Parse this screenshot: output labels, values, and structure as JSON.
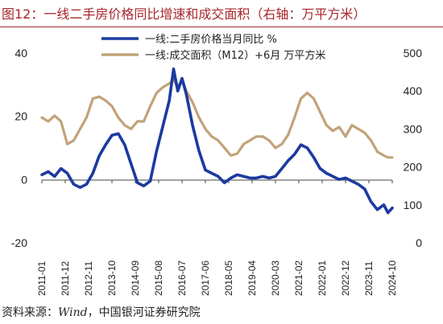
{
  "figure_title": "图12：一线二手房价格同比增速和成交面积（右轴：万平方米）",
  "source": {
    "label": "资料来源：",
    "provider": "Wind",
    "sep": "，",
    "org": "中国银河证券研究院"
  },
  "chart_data": {
    "type": "line",
    "title": "",
    "xlabel": "",
    "ylabel": "",
    "y2label": "",
    "ylim": [
      -20,
      40
    ],
    "y_ticks": [
      40,
      20,
      0,
      -20
    ],
    "y2lim": [
      0,
      500
    ],
    "y2_ticks": [
      500,
      400,
      300,
      200,
      100,
      0
    ],
    "grid": false,
    "legend": "top-left",
    "x_range": [
      "2011-01",
      "2024-10"
    ],
    "x_tick_labels": [
      "2011-01",
      "2011-12",
      "2012-11",
      "2013-10",
      "2014-09",
      "2015-08",
      "2016-07",
      "2017-06",
      "2018-05",
      "2019-04",
      "2020-03",
      "2021-02",
      "2022-01",
      "2022-12",
      "2023-11",
      "2024-10"
    ],
    "series": [
      {
        "name": "一线:二手房价格当月同比 %",
        "axis": "left",
        "color": "#1c3aa0",
        "x": [
          "2011-01",
          "2011-04",
          "2011-07",
          "2011-10",
          "2012-01",
          "2012-04",
          "2012-07",
          "2012-10",
          "2013-01",
          "2013-04",
          "2013-07",
          "2013-10",
          "2014-01",
          "2014-04",
          "2014-07",
          "2014-10",
          "2015-01",
          "2015-04",
          "2015-07",
          "2015-10",
          "2016-01",
          "2016-03",
          "2016-05",
          "2016-07",
          "2016-09",
          "2016-12",
          "2017-03",
          "2017-06",
          "2017-09",
          "2017-12",
          "2018-03",
          "2018-06",
          "2018-09",
          "2018-12",
          "2019-03",
          "2019-06",
          "2019-09",
          "2019-12",
          "2020-03",
          "2020-06",
          "2020-09",
          "2020-12",
          "2021-03",
          "2021-06",
          "2021-09",
          "2021-12",
          "2022-03",
          "2022-06",
          "2022-09",
          "2022-12",
          "2023-03",
          "2023-06",
          "2023-09",
          "2023-12",
          "2024-03",
          "2024-06",
          "2024-08",
          "2024-10"
        ],
        "values": [
          1.5,
          2.5,
          1.0,
          3.5,
          2.0,
          -1.5,
          -2.5,
          -1.5,
          2.0,
          7.5,
          11.0,
          14.0,
          14.5,
          11.0,
          5.0,
          -1.0,
          -2.0,
          -0.5,
          9.0,
          17.0,
          25.0,
          35.0,
          28.0,
          32.0,
          27.0,
          17.0,
          9.0,
          3.0,
          2.0,
          1.0,
          -1.0,
          0.5,
          1.5,
          1.0,
          0.5,
          0.5,
          1.0,
          0.5,
          1.0,
          3.5,
          6.0,
          8.0,
          11.0,
          10.0,
          7.0,
          3.5,
          2.0,
          1.0,
          0.0,
          0.5,
          -0.5,
          -1.5,
          -3.0,
          -7.0,
          -9.5,
          -8.0,
          -10.5,
          -9.0
        ]
      },
      {
        "name": "一线:成交面积（M12）+6月 万平方米",
        "axis": "right",
        "color": "#c2a27a",
        "x": [
          "2011-01",
          "2011-04",
          "2011-07",
          "2011-10",
          "2012-01",
          "2012-04",
          "2012-07",
          "2012-10",
          "2013-01",
          "2013-04",
          "2013-07",
          "2013-10",
          "2014-01",
          "2014-04",
          "2014-07",
          "2014-10",
          "2015-01",
          "2015-04",
          "2015-07",
          "2015-10",
          "2016-01",
          "2016-03",
          "2016-05",
          "2016-07",
          "2016-09",
          "2016-12",
          "2017-03",
          "2017-06",
          "2017-09",
          "2017-12",
          "2018-03",
          "2018-06",
          "2018-09",
          "2018-12",
          "2019-03",
          "2019-06",
          "2019-09",
          "2019-12",
          "2020-03",
          "2020-06",
          "2020-09",
          "2020-12",
          "2021-03",
          "2021-06",
          "2021-09",
          "2021-12",
          "2022-03",
          "2022-06",
          "2022-09",
          "2022-12",
          "2023-03",
          "2023-06",
          "2023-09",
          "2023-12",
          "2024-03",
          "2024-06",
          "2024-08",
          "2024-10"
        ],
        "values": [
          330,
          320,
          335,
          320,
          260,
          270,
          300,
          330,
          380,
          385,
          375,
          360,
          330,
          310,
          300,
          320,
          320,
          360,
          395,
          410,
          420,
          430,
          410,
          430,
          400,
          370,
          330,
          300,
          280,
          270,
          250,
          230,
          235,
          260,
          270,
          280,
          280,
          270,
          250,
          260,
          285,
          330,
          380,
          395,
          380,
          345,
          310,
          295,
          305,
          280,
          310,
          300,
          290,
          270,
          240,
          230,
          225,
          225
        ]
      }
    ]
  }
}
